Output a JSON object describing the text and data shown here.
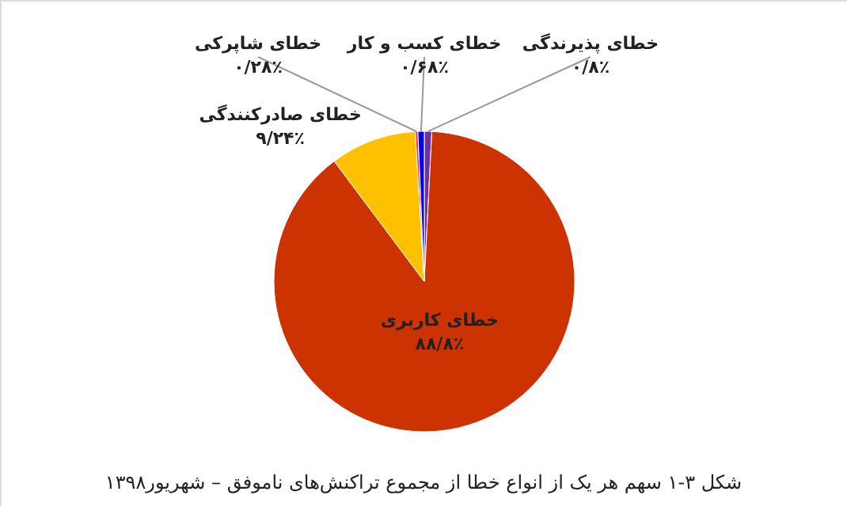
{
  "chart_data": {
    "type": "pie",
    "title": "شکل ۳-۱ سهم هر یک از انواع خطا از مجموع تراکنش‌های ناموفق – شهریور۱۳۹۸",
    "categories": [
      "خطای پذیرندگی",
      "خطای کاربری",
      "خطای صادرکنندگی",
      "خطای شاپرکی",
      "خطای کسب و کار"
    ],
    "values": [
      0.8,
      88.8,
      9.24,
      0.28,
      0.68
    ],
    "value_labels": [
      "۰/۸٪",
      "۸۸/۸٪",
      "۹/۲۴٪",
      "۰/۲۸٪",
      "۰/۶۸٪"
    ],
    "colors": [
      "#7030a0",
      "#cc3300",
      "#ffc000",
      "#ff3333",
      "#0000ff"
    ],
    "legend": false
  }
}
